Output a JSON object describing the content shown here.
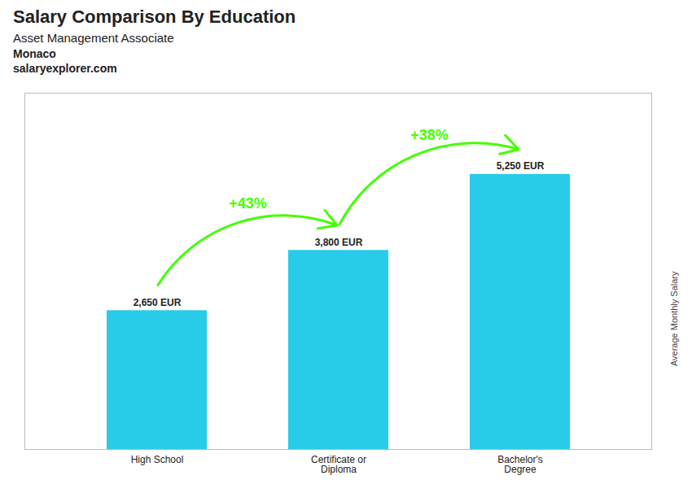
{
  "chart_data": {
    "type": "bar",
    "title": "Salary Comparison By Education",
    "subtitle": "Asset Management Associate",
    "ylabel": "Average Monthly Salary",
    "categories": [
      "High School",
      "Certificate or\nDiploma",
      "Bachelor's\nDegree"
    ],
    "values": [
      2650,
      3800,
      5250
    ],
    "value_labels": [
      "2,650 EUR",
      "3,800 EUR",
      "5,250 EUR"
    ],
    "data_labels": true,
    "color": "#29cce8",
    "ylim": [
      0,
      6800
    ],
    "tick_labels": "x",
    "grid": false,
    "annotations": [
      {
        "text": "+43%",
        "from": "High School",
        "to": "Certificate or\nDiploma",
        "color": "#44ff00"
      },
      {
        "text": "+38%",
        "from": "Certificate or\nDiploma",
        "to": "Bachelor's\nDegree",
        "color": "#44ff00"
      },
      {
        "text": "Monaco"
      },
      {
        "text": "salaryexplorer.com"
      }
    ]
  }
}
